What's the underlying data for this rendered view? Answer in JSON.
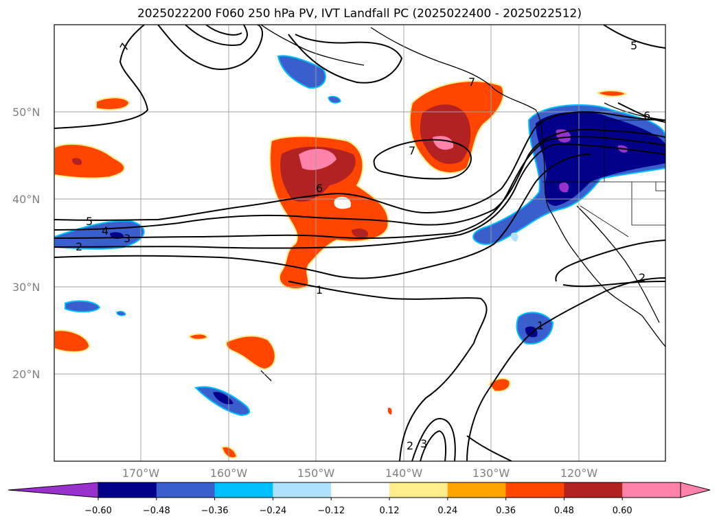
{
  "title": "2025022200 F060 250 hPa PV, IVT Landfall PC (2025022400 - 2025022512)",
  "map": {
    "lat_labels": [
      "50°N",
      "40°N",
      "30°N",
      "20°N"
    ],
    "lon_labels": [
      "170°W",
      "160°W",
      "150°W",
      "140°W",
      "130°W",
      "120°W"
    ],
    "contour_labels": [
      "7",
      "7",
      "7",
      "6",
      "6",
      "5",
      "5",
      "4",
      "3",
      "2",
      "2",
      "2",
      "1",
      "1",
      "2",
      "3"
    ]
  },
  "colorbar": {
    "colors": [
      "#9932cc",
      "#00008b",
      "#3a5fcd",
      "#00bfff",
      "#b0e2ff",
      "#ffffff",
      "#ffec8b",
      "#ffa500",
      "#ff4500",
      "#b22222",
      "#ff82ab",
      "#ff82ab"
    ],
    "tick_labels": [
      "−0.60",
      "−0.48",
      "−0.36",
      "−0.24",
      "−0.12",
      "0.12",
      "0.24",
      "0.36",
      "0.48",
      "0.60"
    ]
  }
}
